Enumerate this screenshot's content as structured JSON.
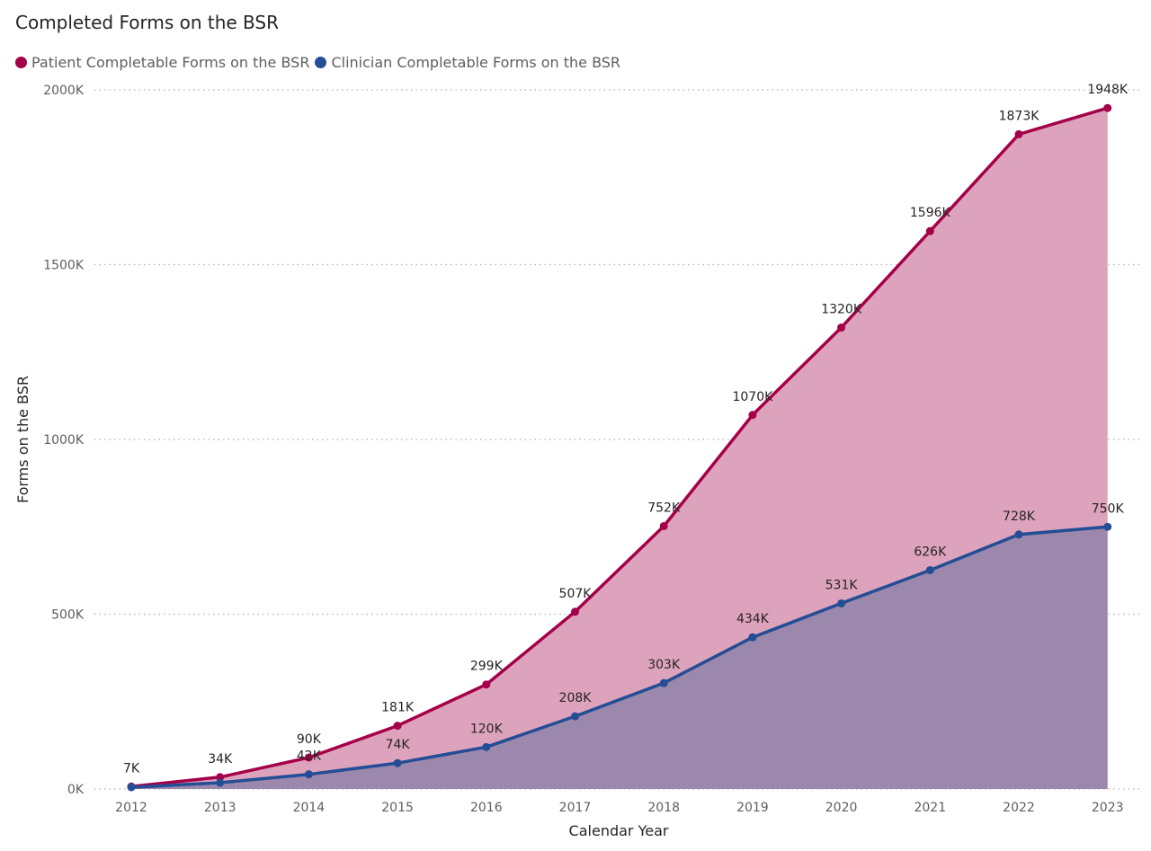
{
  "chart_data": {
    "type": "area",
    "title": "Completed Forms on the BSR",
    "xlabel": "Calendar Year",
    "ylabel": "Forms on the BSR",
    "categories": [
      "2012",
      "2013",
      "2014",
      "2015",
      "2016",
      "2017",
      "2018",
      "2019",
      "2020",
      "2021",
      "2022",
      "2023"
    ],
    "ylim": [
      0,
      2000
    ],
    "yticks": [
      0,
      500,
      1000,
      1500,
      2000
    ],
    "ytick_labels": [
      "0K",
      "500K",
      "1000K",
      "1500K",
      "2000K"
    ],
    "grid": "horizontal dotted",
    "legend_position": "top-left",
    "series": [
      {
        "name": "Patient Completable Forms on the BSR",
        "color": "#a5004a",
        "fill": "#dea3bc",
        "values": [
          7,
          34,
          90,
          181,
          299,
          507,
          752,
          1070,
          1320,
          1596,
          1873,
          1948
        ],
        "labels": [
          "7K",
          "34K",
          "90K",
          "181K",
          "299K",
          "507K",
          "752K",
          "1070K",
          "1320K",
          "1596K",
          "1873K",
          "1948K"
        ]
      },
      {
        "name": "Clinician Completable Forms on the BSR",
        "color": "#234d94",
        "fill": "#9c88ad",
        "values": [
          5,
          18,
          42,
          74,
          120,
          208,
          303,
          434,
          531,
          626,
          728,
          750
        ],
        "labels": [
          "",
          "",
          "42K",
          "74K",
          "120K",
          "208K",
          "303K",
          "434K",
          "531K",
          "626K",
          "728K",
          "750K"
        ]
      }
    ]
  }
}
